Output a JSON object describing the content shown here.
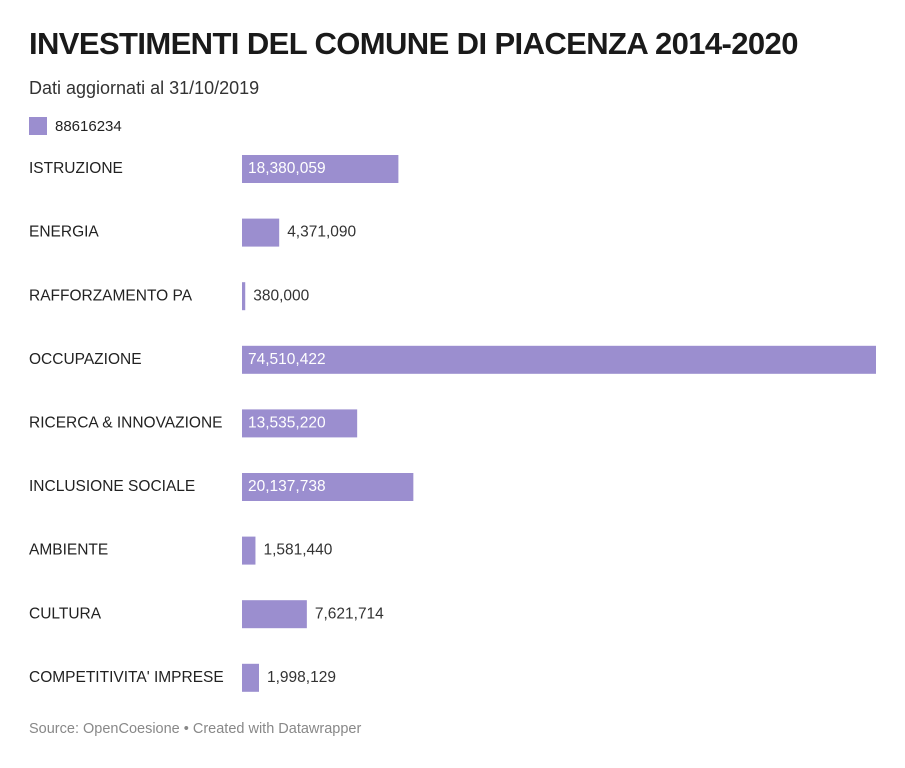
{
  "header": {
    "title": "INVESTIMENTI DEL COMUNE DI PIACENZA 2014-2020",
    "subtitle": "Dati aggiornati al 31/10/2019"
  },
  "legend": {
    "label": "88616234"
  },
  "colors": {
    "bar": "#9b8ecf",
    "label_inside": "#ffffff",
    "label_outside": "#333333"
  },
  "chart_data": {
    "type": "bar",
    "orientation": "horizontal",
    "categories": [
      "ISTRUZIONE",
      "ENERGIA",
      "RAFFORZAMENTO PA",
      "OCCUPAZIONE",
      "RICERCA & INNOVAZIONE",
      "INCLUSIONE SOCIALE",
      "AMBIENTE",
      "CULTURA",
      "COMPETITIVITA' IMPRESE"
    ],
    "values": [
      18380059,
      4371090,
      380000,
      74510422,
      13535220,
      20137738,
      1581440,
      7621714,
      1998129
    ],
    "value_labels": [
      "18,380,059",
      "4,371,090",
      "380,000",
      "74,510,422",
      "13,535,220",
      "20,137,738",
      "1,581,440",
      "7,621,714",
      "1,998,129"
    ],
    "series": [
      {
        "name": "88616234"
      }
    ],
    "xlim": [
      0,
      74510422
    ],
    "grid": false,
    "legend_position": "top-left"
  },
  "footer": {
    "source": "Source: OpenCoesione • Created with Datawrapper"
  }
}
